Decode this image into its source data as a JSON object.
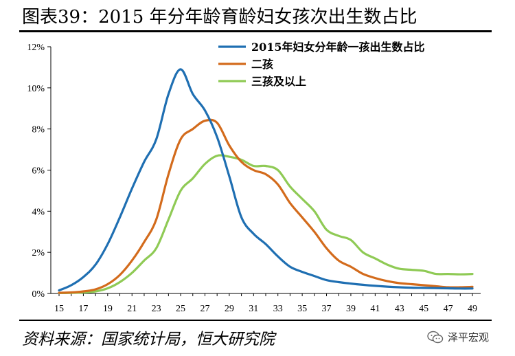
{
  "header": {
    "title": "图表39：2015 年分年龄育龄妇女孩次出生数占比"
  },
  "footer": {
    "source": "资料来源：国家统计局，恒大研究院",
    "watermark": "泽平宏观",
    "watermark_icon": "wechat-icon"
  },
  "colors": {
    "series1": "#1f6fb2",
    "series2": "#d36b1c",
    "series3": "#8fca55"
  },
  "chart_data": {
    "type": "line",
    "title": "",
    "xlabel": "",
    "ylabel": "",
    "xlim": [
      15,
      49
    ],
    "ylim": [
      0,
      12
    ],
    "grid": false,
    "legend_position": "top-right",
    "x_ticks": [
      "15",
      "17",
      "19",
      "21",
      "23",
      "25",
      "27",
      "29",
      "31",
      "33",
      "35",
      "37",
      "39",
      "41",
      "43",
      "45",
      "47",
      "49"
    ],
    "y_ticks": [
      "0%",
      "2%",
      "4%",
      "6%",
      "8%",
      "10%",
      "12%"
    ],
    "x": [
      15,
      16,
      17,
      18,
      19,
      20,
      21,
      22,
      23,
      24,
      25,
      26,
      27,
      28,
      29,
      30,
      31,
      32,
      33,
      34,
      35,
      36,
      37,
      38,
      39,
      40,
      41,
      42,
      43,
      44,
      45,
      46,
      47,
      48,
      49
    ],
    "series": [
      {
        "name": "2015年妇女分年龄一孩出生数占比",
        "values": [
          0.15,
          0.4,
          0.8,
          1.4,
          2.4,
          3.7,
          5.1,
          6.4,
          7.5,
          9.7,
          10.9,
          9.7,
          8.9,
          7.6,
          5.7,
          3.7,
          2.9,
          2.4,
          1.8,
          1.3,
          1.05,
          0.85,
          0.65,
          0.55,
          0.48,
          0.42,
          0.37,
          0.33,
          0.3,
          0.28,
          0.27,
          0.26,
          0.25,
          0.24,
          0.24
        ]
      },
      {
        "name": "二孩",
        "values": [
          0.03,
          0.05,
          0.1,
          0.2,
          0.45,
          0.9,
          1.6,
          2.5,
          3.6,
          5.8,
          7.5,
          8.0,
          8.4,
          8.3,
          7.2,
          6.4,
          6.0,
          5.8,
          5.3,
          4.4,
          3.7,
          3.0,
          2.2,
          1.6,
          1.3,
          0.95,
          0.75,
          0.6,
          0.5,
          0.45,
          0.4,
          0.35,
          0.3,
          0.3,
          0.32
        ]
      },
      {
        "name": "三孩及以上",
        "values": [
          0.02,
          0.03,
          0.05,
          0.1,
          0.25,
          0.55,
          1.0,
          1.6,
          2.2,
          3.6,
          5.0,
          5.6,
          6.3,
          6.7,
          6.65,
          6.5,
          6.2,
          6.2,
          6.0,
          5.2,
          4.6,
          4.0,
          3.1,
          2.8,
          2.6,
          2.0,
          1.7,
          1.4,
          1.2,
          1.15,
          1.1,
          0.95,
          0.95,
          0.93,
          0.95
        ]
      }
    ]
  }
}
